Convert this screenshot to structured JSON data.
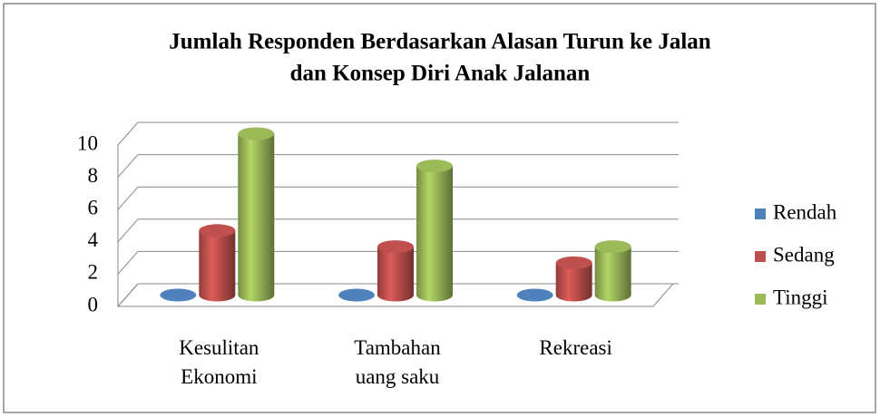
{
  "chart_data": {
    "type": "bar3d",
    "title": [
      "Jumlah Responden Berdasarkan Alasan Turun ke Jalan",
      "dan Konsep Diri Anak Jalanan"
    ],
    "categories": [
      "Kesulitan Ekonomi",
      "Tambahan uang saku",
      "Rekreasi"
    ],
    "series": [
      {
        "name": "Rendah",
        "color": "#4f81bd",
        "values": [
          0,
          0,
          0
        ]
      },
      {
        "name": "Sedang",
        "color": "#c0504d",
        "values": [
          4,
          3,
          2
        ]
      },
      {
        "name": "Tinggi",
        "color": "#9bbb59",
        "values": [
          10,
          8,
          3
        ]
      }
    ],
    "ylim": [
      0,
      10
    ],
    "yticks": [
      0,
      2,
      4,
      6,
      8,
      10
    ],
    "grid": true,
    "legend": "right"
  }
}
